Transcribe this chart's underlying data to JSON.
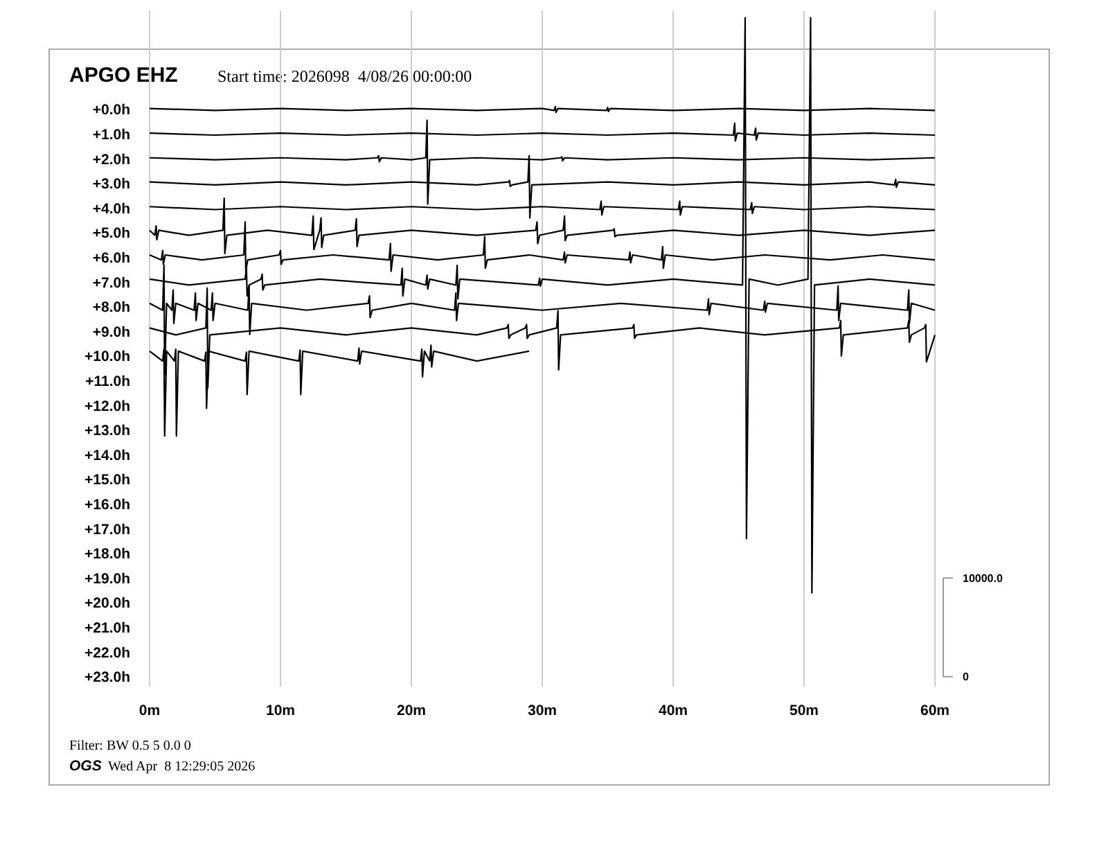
{
  "chart_data": {
    "type": "line",
    "title": "APGO EHZ",
    "subtitle": "Start time: 2026098  4/08/26 00:00:00",
    "annotations": [
      "Filter: BW 0.5 5 0.0 0",
      "OGS",
      "Wed Apr  8 12:29:05 2026"
    ],
    "xlim": [
      0,
      60
    ],
    "xticks": [
      {
        "value": 0,
        "label": "0m"
      },
      {
        "value": 10,
        "label": "10m"
      },
      {
        "value": 20,
        "label": "20m"
      },
      {
        "value": 30,
        "label": "30m"
      },
      {
        "value": 40,
        "label": "40m"
      },
      {
        "value": 50,
        "label": "50m"
      },
      {
        "value": 60,
        "label": "60m"
      }
    ],
    "ylim": [
      23.4,
      -4
    ],
    "yticks": [
      {
        "value": 0,
        "label": "+0.0h"
      },
      {
        "value": 1,
        "label": "+1.0h"
      },
      {
        "value": 2,
        "label": "+2.0h"
      },
      {
        "value": 3,
        "label": "+3.0h"
      },
      {
        "value": 4,
        "label": "+4.0h"
      },
      {
        "value": 5,
        "label": "+5.0h"
      },
      {
        "value": 6,
        "label": "+6.0h"
      },
      {
        "value": 7,
        "label": "+7.0h"
      },
      {
        "value": 8,
        "label": "+8.0h"
      },
      {
        "value": 9,
        "label": "+9.0h"
      },
      {
        "value": 10,
        "label": "+10.0h"
      },
      {
        "value": 11,
        "label": "+11.0h"
      },
      {
        "value": 12,
        "label": "+12.0h"
      },
      {
        "value": 13,
        "label": "+13.0h"
      },
      {
        "value": 14,
        "label": "+14.0h"
      },
      {
        "value": 15,
        "label": "+15.0h"
      },
      {
        "value": 16,
        "label": "+16.0h"
      },
      {
        "value": 17,
        "label": "+17.0h"
      },
      {
        "value": 18,
        "label": "+18.0h"
      },
      {
        "value": 19,
        "label": "+19.0h"
      },
      {
        "value": 20,
        "label": "+20.0h"
      },
      {
        "value": 21,
        "label": "+21.0h"
      },
      {
        "value": 22,
        "label": "+22.0h"
      },
      {
        "value": 23,
        "label": "+23.0h"
      }
    ],
    "y2lim": [
      -1000,
      67500
    ],
    "y2ticks": [
      0,
      {
        "value": 10000,
        "label": "10000.0"
      }
    ],
    "grid": "x",
    "marker": "none",
    "line_style": "solid",
    "series": [
      {
        "color": "#000000",
        "x": [
          0,
          5,
          10,
          15,
          20,
          25,
          30,
          30.9,
          31,
          31.05,
          31.2,
          34.9,
          35,
          35.05,
          35.2,
          40,
          45,
          50,
          55,
          60
        ],
        "values": [
          -0.04,
          0.04,
          -0.04,
          0.04,
          -0.04,
          0.04,
          -0.04,
          0.04,
          -0.12,
          0.12,
          -0.04,
          0.04,
          -0.08,
          0.08,
          -0.04,
          0.04,
          -0.04,
          0.04,
          -0.04,
          0.04
        ]
      },
      {
        "color": "#000000",
        "x": [
          0,
          5,
          10,
          15,
          20,
          25,
          30,
          35,
          40,
          44.6,
          44.7,
          44.75,
          44.9,
          46.2,
          46.3,
          46.35,
          46.5,
          50,
          55,
          60
        ],
        "values": [
          0.96,
          1.04,
          0.96,
          1.04,
          0.96,
          1.04,
          0.96,
          1.04,
          0.96,
          1.04,
          0.56,
          1.28,
          0.96,
          1.04,
          0.76,
          1.24,
          0.96,
          1.04,
          0.96,
          1.04
        ]
      },
      {
        "color": "#000000",
        "x": [
          0,
          5,
          10,
          15,
          17.4,
          17.5,
          17.55,
          17.7,
          20,
          21.1,
          21.2,
          21.25,
          21.4,
          25,
          30,
          31.4,
          31.5,
          31.55,
          31.7,
          35,
          40,
          45,
          50,
          55,
          60
        ],
        "values": [
          1.96,
          2.04,
          1.96,
          2.04,
          1.96,
          1.88,
          2.12,
          1.96,
          2.04,
          1.96,
          0.44,
          3.84,
          2.04,
          1.96,
          2.04,
          1.96,
          1.92,
          2.08,
          1.96,
          2.04,
          1.96,
          2.04,
          1.96,
          2.04,
          1.96
        ]
      },
      {
        "color": "#000000",
        "x": [
          0,
          5,
          10,
          15,
          20,
          25,
          27.4,
          27.5,
          27.55,
          27.7,
          28.9,
          29,
          29.05,
          29.2,
          35,
          40,
          45,
          50,
          55,
          56.9,
          57,
          57.05,
          57.2,
          60
        ],
        "values": [
          2.94,
          3.06,
          2.94,
          3.06,
          2.94,
          3.06,
          2.94,
          2.88,
          3.12,
          3.06,
          2.94,
          1.88,
          4.4,
          3.06,
          2.94,
          3.06,
          2.94,
          3.06,
          2.94,
          3.06,
          2.84,
          3.16,
          2.94,
          3.06
        ]
      },
      {
        "color": "#000000",
        "x": [
          0,
          5,
          10,
          15,
          20,
          25,
          30,
          34.4,
          34.5,
          34.55,
          34.7,
          40.4,
          40.5,
          40.55,
          40.7,
          45.9,
          46,
          46.05,
          46.2,
          50,
          55,
          60
        ],
        "values": [
          3.94,
          4.06,
          3.94,
          4.06,
          3.94,
          4.06,
          3.94,
          4.06,
          3.72,
          4.28,
          3.94,
          4.06,
          3.72,
          4.28,
          3.94,
          4.06,
          3.78,
          4.22,
          3.94,
          4.06,
          3.94,
          4.06
        ]
      },
      {
        "color": "#000000",
        "x": [
          0,
          0.4,
          0.5,
          0.55,
          0.7,
          3,
          5.6,
          5.7,
          5.75,
          5.9,
          9,
          12.4,
          12.5,
          12.55,
          13,
          13.1,
          13.15,
          13.3,
          15.7,
          15.8,
          15.85,
          16,
          20,
          25,
          29.5,
          29.6,
          29.65,
          29.8,
          31.6,
          31.7,
          31.75,
          31.9,
          35.4,
          35.5,
          35.55,
          35.7,
          40,
          45,
          50,
          55,
          60
        ],
        "values": [
          4.9,
          5.1,
          4.72,
          5.28,
          4.9,
          5.1,
          4.9,
          3.6,
          5.84,
          5.1,
          4.9,
          5.1,
          4.32,
          5.68,
          4.9,
          4.4,
          5.6,
          5.1,
          4.9,
          4.44,
          5.56,
          5.1,
          4.9,
          5.1,
          4.9,
          4.56,
          5.44,
          5.1,
          4.9,
          4.32,
          5.32,
          5.1,
          4.9,
          4.84,
          5.16,
          5.1,
          4.9,
          5.1,
          4.9,
          5.1,
          4.9
        ]
      },
      {
        "color": "#000000",
        "x": [
          0,
          0.9,
          1,
          1.05,
          1.2,
          4,
          7.2,
          7.3,
          7.35,
          7.5,
          9.9,
          10,
          10.05,
          10.2,
          14,
          18.3,
          18.4,
          18.45,
          18.6,
          22,
          25.5,
          25.6,
          25.65,
          25.8,
          29,
          31.6,
          31.7,
          31.75,
          31.9,
          36.6,
          36.7,
          36.75,
          36.9,
          39.1,
          39.2,
          39.25,
          39.4,
          43,
          47,
          52,
          56,
          60
        ],
        "values": [
          5.9,
          6.1,
          5.72,
          6.28,
          5.9,
          6.1,
          5.9,
          4.56,
          6.56,
          6.1,
          5.9,
          5.72,
          6.28,
          6.1,
          5.9,
          6.1,
          5.44,
          6.56,
          5.9,
          6.1,
          5.9,
          5.16,
          6.44,
          6.1,
          5.9,
          6.1,
          5.78,
          6.22,
          5.9,
          6.1,
          5.78,
          6.22,
          5.9,
          6.1,
          5.56,
          6.44,
          5.9,
          6.1,
          5.9,
          6.1,
          5.9,
          6.1
        ]
      },
      {
        "color": "#000000",
        "x": [
          0,
          3,
          7.3,
          7.4,
          7.45,
          7.6,
          8.5,
          8.6,
          8.65,
          8.8,
          13,
          19.2,
          19.3,
          19.35,
          19.5,
          21.1,
          21.2,
          21.25,
          21.4,
          23.4,
          23.5,
          23.55,
          23.7,
          29.7,
          29.8,
          29.85,
          30,
          35,
          40,
          45.3,
          45.5,
          45.6,
          45.8,
          48,
          50.3,
          50.5,
          50.6,
          50.8,
          55,
          60
        ],
        "values": [
          6.88,
          7.12,
          6.88,
          6.44,
          7.56,
          7.12,
          6.88,
          6.68,
          7.32,
          7.12,
          6.88,
          7.12,
          6.44,
          7.56,
          6.88,
          7.12,
          6.72,
          7.28,
          6.88,
          7.12,
          6.32,
          7.68,
          6.88,
          7.12,
          6.84,
          7.16,
          6.88,
          7.12,
          6.88,
          7.12,
          -3.72,
          17.4,
          6.88,
          7.12,
          6.88,
          -3.72,
          19.6,
          7.12,
          6.88,
          7.12
        ]
      },
      {
        "color": "#000000",
        "x": [
          0,
          1,
          1.1,
          1.15,
          1.3,
          1.7,
          1.8,
          1.85,
          2,
          3.4,
          3.5,
          3.55,
          3.7,
          4.7,
          4.8,
          4.85,
          5,
          7.5,
          7.6,
          7.65,
          7.8,
          12,
          16.7,
          16.8,
          16.85,
          17,
          20,
          23.3,
          23.4,
          23.45,
          23.6,
          30,
          36,
          42.6,
          42.7,
          42.75,
          42.9,
          46.9,
          47,
          47.05,
          47.2,
          52.5,
          52.6,
          52.65,
          52.8,
          57.9,
          58,
          58.05,
          58.2,
          60
        ],
        "values": [
          7.86,
          8.14,
          6.32,
          10.76,
          7.86,
          8.14,
          7.32,
          8.68,
          7.86,
          8.14,
          7.44,
          8.56,
          7.86,
          8.14,
          7.44,
          8.56,
          7.86,
          8.14,
          7.16,
          9.12,
          7.86,
          8.14,
          7.86,
          7.56,
          8.44,
          8.14,
          7.86,
          8.14,
          7.44,
          8.56,
          7.86,
          8.14,
          7.86,
          8.14,
          7.68,
          8.32,
          7.86,
          8.14,
          7.78,
          8.22,
          7.86,
          8.14,
          7.16,
          8.56,
          7.86,
          8.14,
          7.32,
          8.68,
          7.86,
          8.14
        ]
      },
      {
        "color": "#000000",
        "x": [
          0,
          2,
          4.3,
          4.4,
          4.45,
          4.6,
          10,
          15,
          20,
          25,
          27.3,
          27.4,
          27.45,
          27.6,
          28.7,
          28.8,
          28.85,
          29,
          31.1,
          31.2,
          31.25,
          31.4,
          36.9,
          37,
          37.05,
          37.2,
          42,
          47,
          52.7,
          52.8,
          52.85,
          53,
          57.9,
          58,
          58.05,
          58.2,
          59.2,
          59.3,
          59.35,
          60
        ],
        "values": [
          8.86,
          9.14,
          8.86,
          7.24,
          11.28,
          9.14,
          8.86,
          9.14,
          8.86,
          9.14,
          8.86,
          8.72,
          9.28,
          9.14,
          8.86,
          8.72,
          9.28,
          9.14,
          8.86,
          8.16,
          10.56,
          9.14,
          8.86,
          8.72,
          9.28,
          9.14,
          8.86,
          9.14,
          8.86,
          8.56,
          10,
          9.14,
          8.86,
          8.56,
          9.44,
          9.14,
          8.86,
          8.72,
          10.24,
          9.14
        ]
      },
      {
        "color": "#000000",
        "x": [
          0,
          1,
          1.1,
          1.15,
          1.3,
          1.9,
          2,
          2.05,
          2.2,
          4.2,
          4.3,
          4.35,
          4.5,
          7.3,
          7.4,
          7.45,
          7.6,
          11.4,
          11.5,
          11.55,
          11.7,
          15.9,
          16,
          16.05,
          16.2,
          20.7,
          20.8,
          20.85,
          21,
          21.4,
          21.5,
          21.55,
          21.7,
          25,
          29
        ],
        "values": [
          9.8,
          10.2,
          9.72,
          13.24,
          9.8,
          10.2,
          9.72,
          13.24,
          9.8,
          10.2,
          9.84,
          12.12,
          9.8,
          10.2,
          9.84,
          11.56,
          9.8,
          10.2,
          9.76,
          11.56,
          9.8,
          10.2,
          9.68,
          10.32,
          9.8,
          10.2,
          9.72,
          10.84,
          9.8,
          10.2,
          9.56,
          10.44,
          9.8,
          10.2,
          9.8
        ]
      }
    ]
  }
}
